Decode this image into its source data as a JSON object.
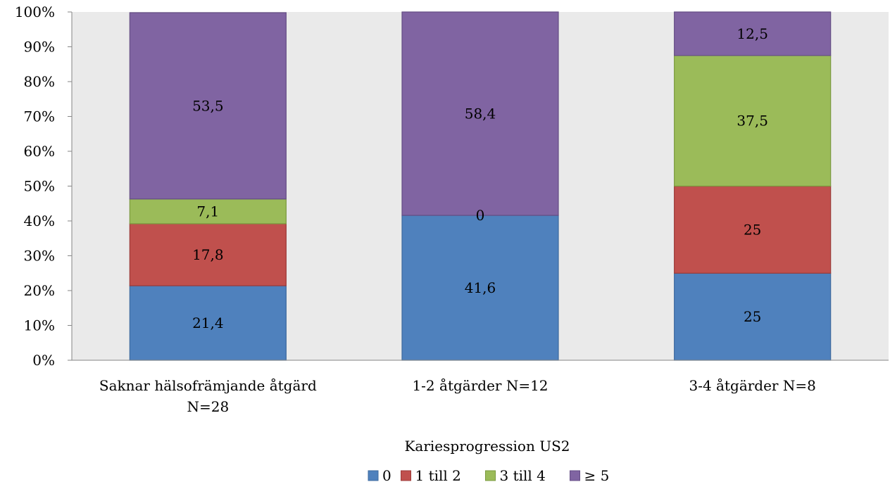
{
  "chart_data": {
    "type": "bar",
    "stacked": true,
    "percent_stacked": true,
    "categories": [
      [
        "Saknar hälsofrämjande åtgärd",
        "N=28"
      ],
      [
        "1-2 åtgärder N=12"
      ],
      [
        "3-4 åtgärder N=8"
      ]
    ],
    "series": [
      {
        "name": "0",
        "color": "#4f81bd",
        "values": [
          21.4,
          41.6,
          25
        ],
        "labels": [
          "21,4",
          "41,6",
          "25"
        ]
      },
      {
        "name": "1 till 2",
        "color": "#c0504d",
        "values": [
          17.8,
          0,
          25
        ],
        "labels": [
          "17,8",
          "0",
          "25"
        ]
      },
      {
        "name": "3 till 4",
        "color": "#9bbb59",
        "values": [
          7.1,
          0,
          37.5
        ],
        "labels": [
          "7,1",
          "",
          "37,5"
        ]
      },
      {
        "name": "≥ 5",
        "color": "#8064a2",
        "values": [
          53.5,
          58.4,
          12.5
        ],
        "labels": [
          "53,5",
          "58,4",
          "12,5"
        ]
      }
    ],
    "xlabel": "Kariesprogression US2",
    "ylabel": "",
    "ylim": [
      0,
      100
    ],
    "yticks": [
      "0%",
      "10%",
      "20%",
      "30%",
      "40%",
      "50%",
      "60%",
      "70%",
      "80%",
      "90%",
      "100%"
    ],
    "legend_position": "bottom",
    "plot_background": "#eaeaea",
    "grid": false
  }
}
